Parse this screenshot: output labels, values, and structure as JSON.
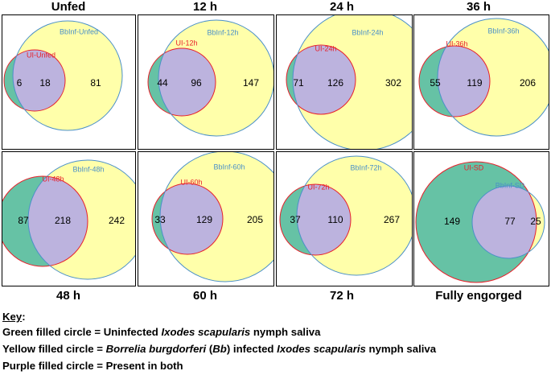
{
  "titles_top": [
    "Unfed",
    "12 h",
    "24 h",
    "36 h"
  ],
  "titles_bottom": [
    "48 h",
    "60 h",
    "72 h",
    "Fully engorged"
  ],
  "panels": [
    {
      "id": "unfed",
      "ui_label": "UI-Unfed",
      "bb_label": "BbInf-Unfed",
      "ui_only": "6",
      "both": "18",
      "bb_only": "81"
    },
    {
      "id": "12h",
      "ui_label": "UI-12h",
      "bb_label": "BbInf-12h",
      "ui_only": "44",
      "both": "96",
      "bb_only": "147"
    },
    {
      "id": "24h",
      "ui_label": "UI-24h",
      "bb_label": "BbInf-24h",
      "ui_only": "71",
      "both": "126",
      "bb_only": "302"
    },
    {
      "id": "36h",
      "ui_label": "UI-36h",
      "bb_label": "BbInf-36h",
      "ui_only": "55",
      "both": "119",
      "bb_only": "206"
    },
    {
      "id": "48h",
      "ui_label": "UI-48h",
      "bb_label": "BbInf-48h",
      "ui_only": "87",
      "both": "218",
      "bb_only": "242"
    },
    {
      "id": "60h",
      "ui_label": "UI-60h",
      "bb_label": "BbInf-60h",
      "ui_only": "33",
      "both": "129",
      "bb_only": "205"
    },
    {
      "id": "72h",
      "ui_label": "UI-72h",
      "bb_label": "BbInf-72h",
      "ui_only": "37",
      "both": "110",
      "bb_only": "267"
    },
    {
      "id": "sd",
      "ui_label": "UI-SD",
      "bb_label": "BbInf-SD",
      "ui_only": "149",
      "both": "77",
      "bb_only": "25"
    }
  ],
  "colors": {
    "green": "#66C2A5",
    "yellow": "#FFFFAA",
    "purple": "#BCB3DE",
    "ui_stroke": "#E8202A",
    "bb_stroke": "#4A90C8"
  },
  "key": {
    "title": "Key",
    "title_colon": ":",
    "green_prefix": "Green filled circle = Uninfected ",
    "green_species": "Ixodes scapularis",
    "green_suffix": " nymph saliva",
    "yellow_prefix": "Yellow filled circle = ",
    "yellow_bacterium": "Borrelia burgdorferi",
    "yellow_abbr_open": " (",
    "yellow_abbr": "Bb",
    "yellow_abbr_close": ") infected ",
    "yellow_species": "Ixodes scapularis",
    "yellow_suffix": " nymph saliva",
    "purple_text": "Purple filled circle = Present in both"
  }
}
